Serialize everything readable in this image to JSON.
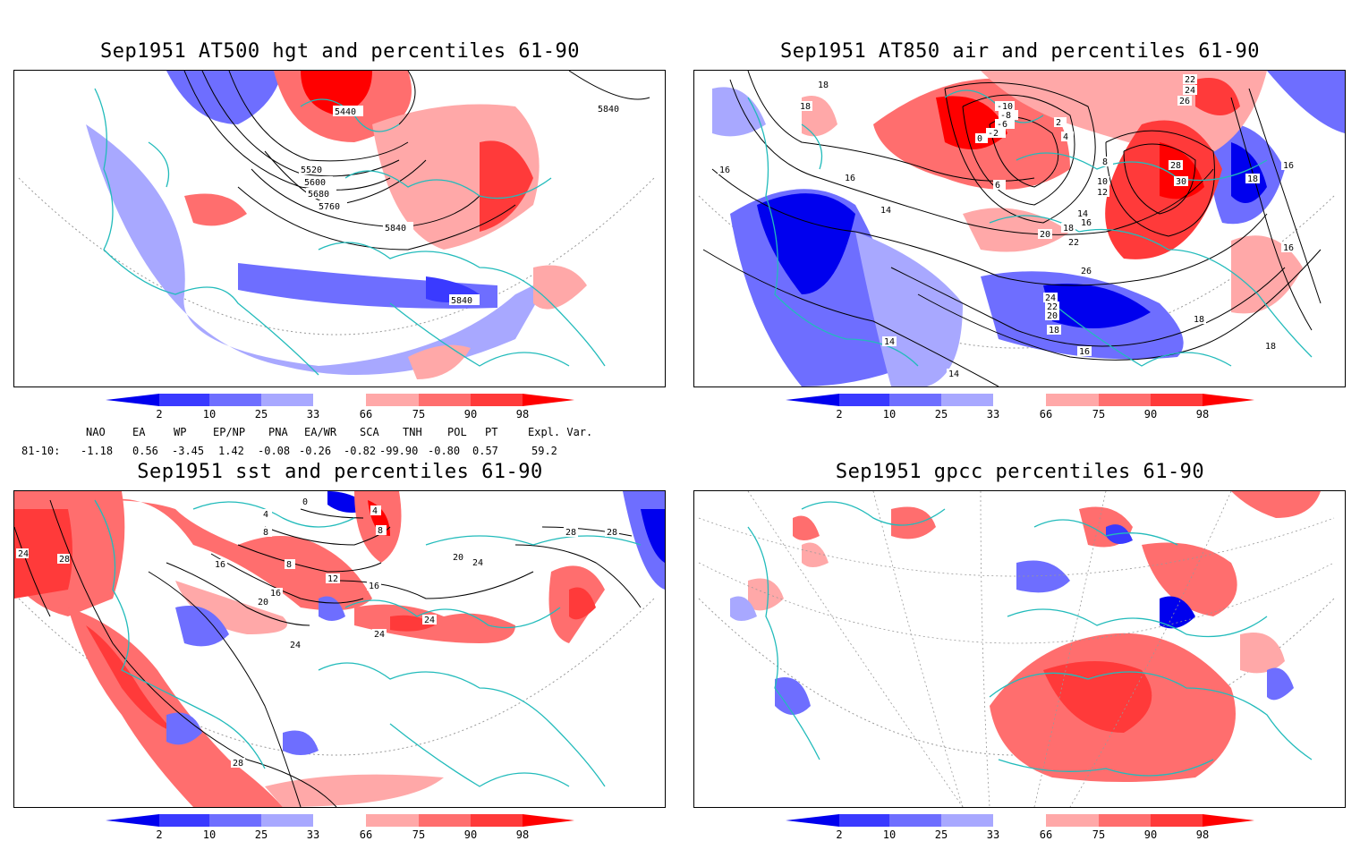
{
  "panels": [
    {
      "id": "p1",
      "title": "Sep1951 AT500 hgt and percentiles 61-90",
      "contour_labels": [
        "5440",
        "5840",
        "5520",
        "5600",
        "5680",
        "5760",
        "5840",
        "5840"
      ]
    },
    {
      "id": "p2",
      "title": "Sep1951 AT850 air and percentiles 61-90",
      "contour_labels": [
        "18",
        "18",
        "16",
        "16",
        "14",
        "14",
        "14",
        "18",
        "16",
        "16",
        "18",
        "-10",
        "-8",
        "-6",
        "-2",
        "0",
        "2",
        "4",
        "6",
        "8",
        "10",
        "12",
        "14",
        "16",
        "18",
        "20",
        "22",
        "22",
        "24",
        "26",
        "28",
        "30",
        "26",
        "24",
        "22",
        "20",
        "18",
        "16",
        "18"
      ]
    },
    {
      "id": "p3",
      "title": "Sep1951 sst and percentiles 61-90",
      "contour_labels": [
        "24",
        "28",
        "16",
        "8",
        "4",
        "0",
        "4",
        "8",
        "8",
        "12",
        "16",
        "16",
        "20",
        "24",
        "24",
        "24",
        "28",
        "28",
        "20",
        "24",
        "28"
      ]
    },
    {
      "id": "p4",
      "title": "Sep1951 gpcc percentiles 61-90",
      "contour_labels": []
    }
  ],
  "colorbar": {
    "ticks": [
      "2",
      "10",
      "25",
      "33",
      "66",
      "75",
      "90",
      "98"
    ],
    "colors": [
      "#0000ee",
      "#3a3aff",
      "#6e6eff",
      "#a8a8ff",
      "#ffffff",
      "#ffa8a8",
      "#ff6e6e",
      "#ff3a3a",
      "#ff0000"
    ]
  },
  "indices": {
    "headers": [
      "NAO",
      "EA",
      "WP",
      "EP/NP",
      "PNA",
      "EA/WR",
      "SCA",
      "TNH",
      "POL",
      "PT",
      "Expl. Var."
    ],
    "row_label": "81-10:",
    "values": [
      "-1.18",
      "0.56",
      "-3.45",
      "1.42",
      "-0.08",
      "-0.26",
      "-0.82",
      "-99.90",
      "-0.80",
      "0.57",
      "59.2"
    ]
  }
}
